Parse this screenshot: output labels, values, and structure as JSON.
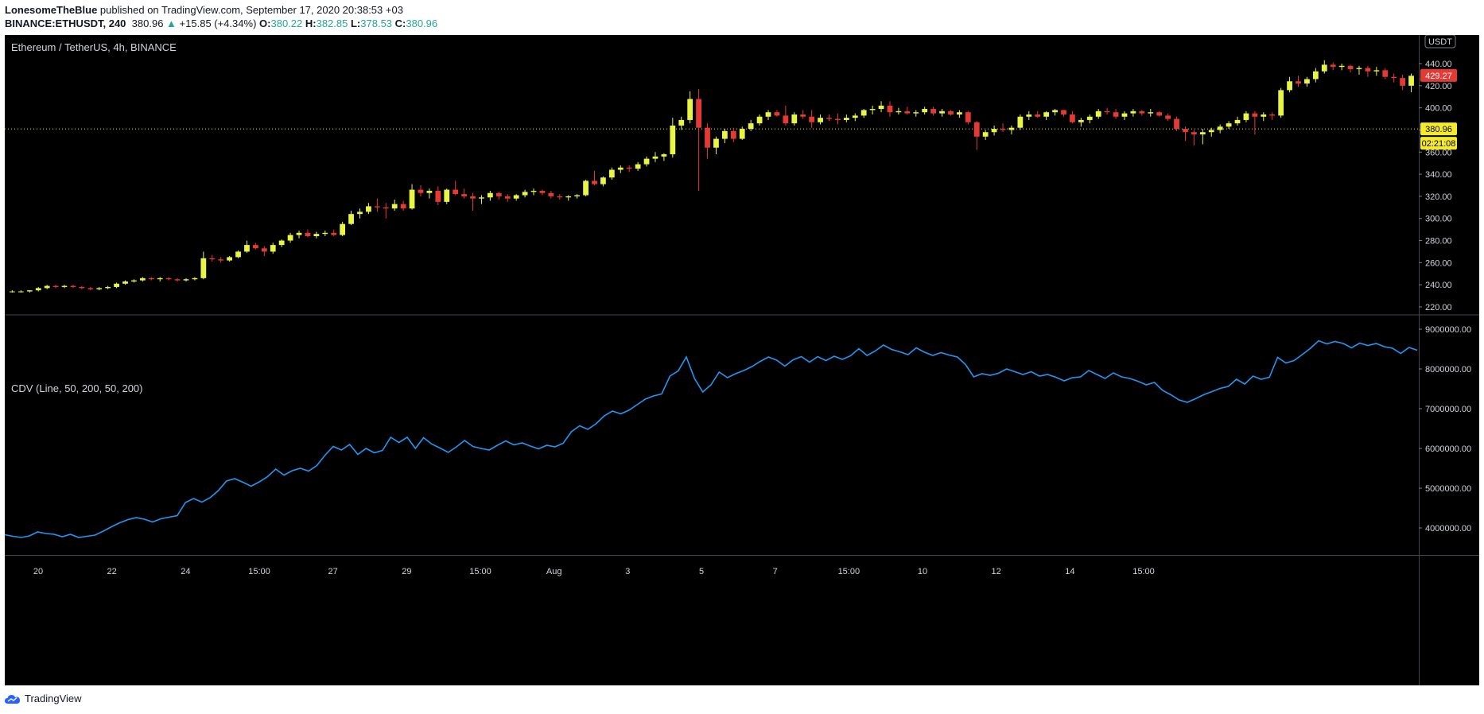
{
  "header": {
    "author": "LonesomeTheBlue",
    "published_text": "published on TradingView.com, September 17, 2020 20:38:53 +03",
    "symbol": "BINANCE:ETHUSDT, 240",
    "last": "380.96",
    "change_arrow": "▲",
    "change": "+15.85 (+4.34%)",
    "o_label": "O:",
    "o": "380.22",
    "h_label": "H:",
    "h": "382.85",
    "l_label": "L:",
    "l": "378.53",
    "c_label": "C:",
    "c": "380.96"
  },
  "pane_title": "Ethereum / TetherUS, 4h, BINANCE",
  "indicator_title": "CDV (Line, 50, 200, 50, 200)",
  "currency_badge": "USDT",
  "footer_brand": "TradingView",
  "colors": {
    "background": "#000000",
    "up_candle": "#e8f545",
    "down_candle": "#e53935",
    "cdv_line": "#2196f3",
    "last_price_label": "#f5e92c",
    "current_label": "#e53935"
  },
  "chart_data": [
    {
      "type": "candlestick",
      "title": "Ethereum / TetherUS, 4h, BINANCE",
      "ylim": [
        210,
        450
      ],
      "y_ticks": [
        "220.00",
        "240.00",
        "260.00",
        "280.00",
        "300.00",
        "320.00",
        "340.00",
        "360.00",
        "380.00",
        "400.00",
        "420.00",
        "440.00"
      ],
      "x_ticks": [
        "20",
        "22",
        "24",
        "15:00",
        "27",
        "29",
        "15:00",
        "Aug",
        "3",
        "5",
        "7",
        "15:00",
        "10",
        "12",
        "14",
        "15:00"
      ],
      "last_price": "380.96",
      "countdown": "02:21:08",
      "current_price": "429.27",
      "ohlc": [
        [
          234,
          235,
          233,
          234
        ],
        [
          234,
          235,
          233,
          234
        ],
        [
          234,
          235,
          233,
          235
        ],
        [
          235,
          238,
          234,
          237
        ],
        [
          237,
          240,
          236,
          239
        ],
        [
          239,
          240,
          237,
          238
        ],
        [
          238,
          240,
          237,
          239
        ],
        [
          239,
          240,
          237,
          238
        ],
        [
          238,
          239,
          236,
          237
        ],
        [
          237,
          238,
          235,
          236
        ],
        [
          236,
          238,
          235,
          237
        ],
        [
          237,
          239,
          236,
          238
        ],
        [
          238,
          242,
          237,
          241
        ],
        [
          241,
          244,
          240,
          243
        ],
        [
          243,
          245,
          242,
          244
        ],
        [
          244,
          247,
          243,
          246
        ],
        [
          246,
          247,
          244,
          245
        ],
        [
          245,
          247,
          243,
          246
        ],
        [
          246,
          247,
          244,
          245
        ],
        [
          245,
          246,
          243,
          244
        ],
        [
          244,
          246,
          243,
          245
        ],
        [
          245,
          247,
          244,
          246
        ],
        [
          246,
          270,
          245,
          264
        ],
        [
          264,
          267,
          261,
          263
        ],
        [
          263,
          265,
          260,
          262
        ],
        [
          262,
          266,
          261,
          265
        ],
        [
          265,
          271,
          264,
          270
        ],
        [
          270,
          280,
          269,
          276
        ],
        [
          276,
          278,
          272,
          273
        ],
        [
          273,
          275,
          266,
          270
        ],
        [
          270,
          278,
          268,
          276
        ],
        [
          276,
          281,
          274,
          280
        ],
        [
          280,
          287,
          278,
          285
        ],
        [
          285,
          289,
          282,
          287
        ],
        [
          287,
          290,
          283,
          284
        ],
        [
          284,
          288,
          282,
          286
        ],
        [
          286,
          289,
          284,
          287
        ],
        [
          287,
          290,
          284,
          285
        ],
        [
          285,
          297,
          284,
          295
        ],
        [
          295,
          307,
          294,
          304
        ],
        [
          304,
          309,
          300,
          306
        ],
        [
          306,
          314,
          304,
          311
        ],
        [
          311,
          318,
          306,
          310
        ],
        [
          310,
          314,
          300,
          309
        ],
        [
          309,
          317,
          307,
          313
        ],
        [
          313,
          316,
          307,
          309
        ],
        [
          309,
          331,
          308,
          326
        ],
        [
          326,
          330,
          320,
          323
        ],
        [
          323,
          327,
          318,
          325
        ],
        [
          325,
          329,
          312,
          315
        ],
        [
          315,
          327,
          313,
          326
        ],
        [
          326,
          334,
          321,
          322
        ],
        [
          322,
          327,
          318,
          320
        ],
        [
          320,
          323,
          307,
          318
        ],
        [
          318,
          321,
          313,
          319
        ],
        [
          319,
          325,
          316,
          323
        ],
        [
          323,
          324,
          317,
          320
        ],
        [
          320,
          322,
          315,
          318
        ],
        [
          318,
          322,
          316,
          321
        ],
        [
          321,
          326,
          319,
          324
        ],
        [
          324,
          327,
          321,
          325
        ],
        [
          325,
          326,
          321,
          323
        ],
        [
          323,
          325,
          318,
          320
        ],
        [
          320,
          322,
          317,
          319
        ],
        [
          319,
          321,
          316,
          320
        ],
        [
          320,
          322,
          318,
          321
        ],
        [
          321,
          335,
          320,
          334
        ],
        [
          334,
          343,
          330,
          331
        ],
        [
          331,
          338,
          329,
          337
        ],
        [
          337,
          346,
          335,
          344
        ],
        [
          344,
          348,
          341,
          346
        ],
        [
          346,
          348,
          342,
          345
        ],
        [
          345,
          351,
          343,
          349
        ],
        [
          349,
          356,
          347,
          354
        ],
        [
          354,
          360,
          351,
          356
        ],
        [
          356,
          359,
          352,
          358
        ],
        [
          358,
          391,
          355,
          384
        ],
        [
          384,
          392,
          380,
          389
        ],
        [
          389,
          415,
          386,
          408
        ],
        [
          408,
          417,
          325,
          382
        ],
        [
          382,
          386,
          354,
          364
        ],
        [
          364,
          374,
          358,
          372
        ],
        [
          372,
          381,
          368,
          379
        ],
        [
          379,
          382,
          369,
          372
        ],
        [
          372,
          383,
          371,
          381
        ],
        [
          381,
          389,
          379,
          386
        ],
        [
          386,
          394,
          384,
          392
        ],
        [
          392,
          398,
          389,
          396
        ],
        [
          396,
          398,
          392,
          393
        ],
        [
          393,
          402,
          384,
          386
        ],
        [
          386,
          396,
          384,
          394
        ],
        [
          394,
          398,
          390,
          392
        ],
        [
          392,
          398,
          382,
          387
        ],
        [
          387,
          394,
          385,
          391
        ],
        [
          391,
          394,
          388,
          390
        ],
        [
          390,
          395,
          385,
          389
        ],
        [
          389,
          394,
          387,
          391
        ],
        [
          391,
          395,
          388,
          393
        ],
        [
          393,
          399,
          391,
          398
        ],
        [
          398,
          402,
          394,
          399
        ],
        [
          399,
          406,
          396,
          402
        ],
        [
          402,
          406,
          392,
          396
        ],
        [
          396,
          400,
          394,
          397
        ],
        [
          397,
          401,
          394,
          395
        ],
        [
          395,
          398,
          392,
          396
        ],
        [
          396,
          401,
          394,
          399
        ],
        [
          399,
          401,
          393,
          395
        ],
        [
          395,
          399,
          392,
          397
        ],
        [
          397,
          398,
          393,
          394
        ],
        [
          394,
          398,
          391,
          396
        ],
        [
          396,
          397,
          385,
          387
        ],
        [
          387,
          388,
          362,
          374
        ],
        [
          374,
          380,
          371,
          378
        ],
        [
          378,
          384,
          375,
          381
        ],
        [
          381,
          386,
          378,
          380
        ],
        [
          380,
          384,
          376,
          382
        ],
        [
          382,
          394,
          380,
          392
        ],
        [
          392,
          397,
          389,
          394
        ],
        [
          394,
          397,
          391,
          392
        ],
        [
          392,
          397,
          389,
          396
        ],
        [
          396,
          399,
          393,
          398
        ],
        [
          398,
          398,
          392,
          394
        ],
        [
          394,
          397,
          386,
          387
        ],
        [
          387,
          391,
          383,
          389
        ],
        [
          389,
          394,
          386,
          392
        ],
        [
          392,
          399,
          390,
          397
        ],
        [
          397,
          400,
          394,
          396
        ],
        [
          396,
          399,
          390,
          392
        ],
        [
          392,
          397,
          389,
          395
        ],
        [
          395,
          399,
          392,
          397
        ],
        [
          397,
          398,
          393,
          395
        ],
        [
          395,
          399,
          392,
          396
        ],
        [
          396,
          397,
          392,
          393
        ],
        [
          393,
          395,
          388,
          390
        ],
        [
          390,
          392,
          379,
          381
        ],
        [
          381,
          383,
          370,
          378
        ],
        [
          378,
          380,
          366,
          376
        ],
        [
          376,
          381,
          367,
          378
        ],
        [
          378,
          382,
          374,
          380
        ],
        [
          380,
          385,
          377,
          383
        ],
        [
          383,
          388,
          381,
          386
        ],
        [
          386,
          392,
          384,
          389
        ],
        [
          389,
          397,
          387,
          395
        ],
        [
          395,
          397,
          376,
          392
        ],
        [
          392,
          396,
          388,
          394
        ],
        [
          394,
          396,
          389,
          393
        ],
        [
          393,
          418,
          391,
          416
        ],
        [
          416,
          428,
          414,
          424
        ],
        [
          424,
          429,
          419,
          422
        ],
        [
          422,
          428,
          419,
          426
        ],
        [
          426,
          436,
          423,
          433
        ],
        [
          433,
          443,
          431,
          439
        ],
        [
          439,
          441,
          434,
          437
        ],
        [
          437,
          440,
          434,
          438
        ],
        [
          438,
          439,
          432,
          435
        ],
        [
          435,
          438,
          430,
          436
        ],
        [
          436,
          438,
          428,
          433
        ],
        [
          433,
          437,
          429,
          434
        ],
        [
          434,
          436,
          426,
          428
        ],
        [
          428,
          431,
          423,
          427
        ],
        [
          427,
          430,
          416,
          420
        ],
        [
          420,
          431,
          414,
          429
        ]
      ]
    },
    {
      "type": "line",
      "title": "CDV (Line, 50, 200, 50, 200)",
      "ylim": [
        3200000,
        9300000
      ],
      "y_ticks": [
        "4000000.00",
        "5000000.00",
        "6000000.00",
        "7000000.00",
        "8000000.00",
        "9000000.00"
      ],
      "series": [
        {
          "values": [
            3830000,
            3790000,
            3760000,
            3800000,
            3900000,
            3860000,
            3840000,
            3780000,
            3840000,
            3760000,
            3790000,
            3820000,
            3920000,
            4030000,
            4130000,
            4210000,
            4260000,
            4220000,
            4150000,
            4230000,
            4270000,
            4310000,
            4640000,
            4740000,
            4650000,
            4760000,
            4940000,
            5180000,
            5240000,
            5150000,
            5050000,
            5160000,
            5290000,
            5480000,
            5330000,
            5440000,
            5500000,
            5430000,
            5570000,
            5830000,
            6050000,
            5960000,
            6100000,
            5850000,
            6000000,
            5890000,
            5950000,
            6280000,
            6150000,
            6280000,
            6000000,
            6270000,
            6110000,
            6010000,
            5900000,
            6040000,
            6200000,
            6050000,
            6000000,
            5960000,
            6080000,
            6190000,
            6090000,
            6140000,
            6060000,
            5990000,
            6080000,
            6040000,
            6130000,
            6420000,
            6570000,
            6480000,
            6620000,
            6820000,
            6940000,
            6870000,
            6960000,
            7100000,
            7240000,
            7320000,
            7370000,
            7820000,
            7950000,
            8300000,
            7760000,
            7420000,
            7600000,
            7920000,
            7780000,
            7880000,
            7960000,
            8060000,
            8190000,
            8300000,
            8220000,
            8070000,
            8230000,
            8310000,
            8170000,
            8310000,
            8210000,
            8320000,
            8240000,
            8330000,
            8510000,
            8340000,
            8450000,
            8600000,
            8490000,
            8430000,
            8360000,
            8530000,
            8420000,
            8340000,
            8410000,
            8350000,
            8300000,
            8110000,
            7800000,
            7880000,
            7840000,
            7890000,
            8000000,
            7930000,
            7860000,
            7930000,
            7820000,
            7860000,
            7790000,
            7700000,
            7780000,
            7800000,
            7960000,
            7860000,
            7760000,
            7900000,
            7800000,
            7760000,
            7690000,
            7600000,
            7660000,
            7460000,
            7350000,
            7220000,
            7160000,
            7250000,
            7350000,
            7430000,
            7510000,
            7560000,
            7740000,
            7620000,
            7820000,
            7740000,
            7790000,
            8290000,
            8150000,
            8210000,
            8360000,
            8520000,
            8710000,
            8630000,
            8690000,
            8640000,
            8530000,
            8650000,
            8590000,
            8640000,
            8560000,
            8520000,
            8390000,
            8540000,
            8470000
          ]
        }
      ]
    }
  ]
}
